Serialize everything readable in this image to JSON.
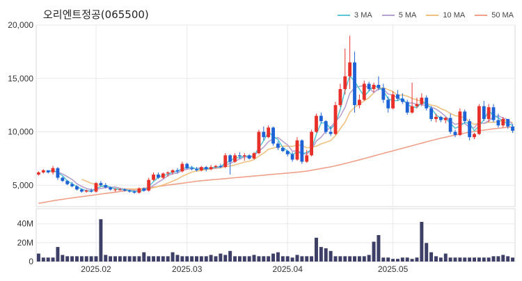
{
  "chart_data": {
    "type": "candlestick",
    "title": "오리엔트정공(065500)",
    "price_axis": {
      "ticks": [
        5000,
        10000,
        15000,
        20000
      ],
      "tick_labels": [
        "5,000",
        "10,000",
        "15,000",
        "20,000"
      ],
      "range": [
        3000,
        20000
      ]
    },
    "volume_axis": {
      "ticks": [
        0,
        20000000,
        40000000
      ],
      "tick_labels": [
        "0",
        "20M",
        "40M"
      ],
      "range": [
        0,
        56000000
      ]
    },
    "x_ticks": [
      {
        "index": 12,
        "label": "2025.02"
      },
      {
        "index": 31,
        "label": "2025.03"
      },
      {
        "index": 52,
        "label": "2025.04"
      },
      {
        "index": 74,
        "label": "2025.05"
      }
    ],
    "legend": [
      {
        "name": "3 MA",
        "color": "#5bc6d4"
      },
      {
        "name": "5 MA",
        "color": "#b8a0d0"
      },
      {
        "name": "10 MA",
        "color": "#f0c080"
      },
      {
        "name": "50 MA",
        "color": "#f0a088"
      }
    ],
    "colors": {
      "up": "#e8302a",
      "down": "#1e63d6",
      "volume": "#3d3f66",
      "grid": "#e8e8e8"
    },
    "candles": [
      [
        6000,
        6300,
        5900,
        6200
      ],
      [
        6200,
        6500,
        6100,
        6400
      ],
      [
        6400,
        6400,
        6100,
        6200
      ],
      [
        6200,
        6800,
        6000,
        6600
      ],
      [
        6600,
        6700,
        5500,
        5700
      ],
      [
        5700,
        5800,
        5300,
        5400
      ],
      [
        5400,
        5500,
        5000,
        5100
      ],
      [
        5100,
        5300,
        4800,
        4900
      ],
      [
        4900,
        5000,
        4500,
        4600
      ],
      [
        4600,
        4700,
        4300,
        4400
      ],
      [
        4400,
        4600,
        4300,
        4500
      ],
      [
        4500,
        4700,
        4300,
        4400
      ],
      [
        4400,
        5300,
        4300,
        5200
      ],
      [
        5200,
        5400,
        4900,
        5000
      ],
      [
        5000,
        5200,
        4700,
        4800
      ],
      [
        4800,
        4900,
        4500,
        4600
      ],
      [
        4600,
        4700,
        4400,
        4600
      ],
      [
        4600,
        4700,
        4500,
        4600
      ],
      [
        4600,
        4700,
        4400,
        4500
      ],
      [
        4500,
        4600,
        4300,
        4400
      ],
      [
        4400,
        4500,
        4200,
        4300
      ],
      [
        4300,
        4800,
        4200,
        4700
      ],
      [
        4700,
        4800,
        4400,
        4500
      ],
      [
        4500,
        5700,
        4400,
        5500
      ],
      [
        5500,
        6200,
        5400,
        6000
      ],
      [
        6000,
        6200,
        5600,
        5700
      ],
      [
        5700,
        6200,
        5600,
        6100
      ],
      [
        6100,
        6300,
        5800,
        6200
      ],
      [
        6200,
        6500,
        6000,
        6400
      ],
      [
        6400,
        6600,
        6100,
        6300
      ],
      [
        6300,
        7200,
        6200,
        7000
      ],
      [
        7000,
        7100,
        6500,
        6600
      ],
      [
        6600,
        6800,
        6400,
        6500
      ],
      [
        6500,
        6700,
        6300,
        6400
      ],
      [
        6400,
        6800,
        6300,
        6700
      ],
      [
        6700,
        6800,
        6300,
        6500
      ],
      [
        6500,
        6900,
        6400,
        6700
      ],
      [
        6700,
        6900,
        6600,
        6800
      ],
      [
        6800,
        7000,
        6600,
        6700
      ],
      [
        6700,
        8000,
        6600,
        7800
      ],
      [
        7800,
        7900,
        6000,
        7200
      ],
      [
        7200,
        8000,
        7100,
        7800
      ],
      [
        7800,
        8100,
        7500,
        7700
      ],
      [
        7700,
        8000,
        7300,
        7800
      ],
      [
        7800,
        7900,
        7400,
        7500
      ],
      [
        7500,
        8100,
        7400,
        8000
      ],
      [
        8000,
        10200,
        7900,
        10000
      ],
      [
        10000,
        10500,
        9200,
        9500
      ],
      [
        9500,
        10600,
        9400,
        10400
      ],
      [
        10400,
        10500,
        8700,
        8900
      ],
      [
        8900,
        9100,
        8300,
        8500
      ],
      [
        8500,
        8600,
        8100,
        8200
      ],
      [
        8200,
        8300,
        7700,
        7900
      ],
      [
        7900,
        8100,
        7200,
        7400
      ],
      [
        7400,
        9500,
        7300,
        9200
      ],
      [
        9200,
        9300,
        7000,
        7200
      ],
      [
        7200,
        8300,
        7100,
        7800
      ],
      [
        7800,
        10200,
        7700,
        10000
      ],
      [
        10000,
        11700,
        9900,
        11500
      ],
      [
        11500,
        11800,
        10800,
        11000
      ],
      [
        11000,
        11100,
        9800,
        10000
      ],
      [
        10000,
        10500,
        9600,
        9800
      ],
      [
        9800,
        12800,
        9700,
        12500
      ],
      [
        12500,
        14500,
        12300,
        14000
      ],
      [
        14000,
        17800,
        13500,
        15200
      ],
      [
        15200,
        19000,
        14000,
        16500
      ],
      [
        16500,
        17500,
        11800,
        12500
      ],
      [
        12500,
        13500,
        12200,
        13000
      ],
      [
        13000,
        14800,
        12900,
        14500
      ],
      [
        14500,
        14700,
        13800,
        14000
      ],
      [
        14000,
        14600,
        13700,
        14400
      ],
      [
        14400,
        15200,
        13900,
        14100
      ],
      [
        14100,
        14500,
        12700,
        13000
      ],
      [
        13000,
        13300,
        11800,
        12200
      ],
      [
        12200,
        13800,
        12100,
        13500
      ],
      [
        13500,
        13900,
        12900,
        13100
      ],
      [
        13100,
        13600,
        12600,
        12800
      ],
      [
        12800,
        13000,
        11600,
        11800
      ],
      [
        11800,
        14600,
        11700,
        12400
      ],
      [
        12400,
        13200,
        12200,
        12600
      ],
      [
        12600,
        13600,
        12400,
        13200
      ],
      [
        13200,
        13400,
        12000,
        12200
      ],
      [
        12200,
        12400,
        11000,
        11200
      ],
      [
        11200,
        11700,
        10900,
        11400
      ],
      [
        11400,
        11500,
        10900,
        11100
      ],
      [
        11100,
        11400,
        10800,
        11300
      ],
      [
        11300,
        11700,
        9800,
        10000
      ],
      [
        10000,
        10200,
        9500,
        9700
      ],
      [
        9700,
        12200,
        9600,
        11900
      ],
      [
        11900,
        12100,
        10800,
        11000
      ],
      [
        11000,
        11200,
        9200,
        9500
      ],
      [
        9500,
        9900,
        9300,
        9800
      ],
      [
        9800,
        12600,
        9700,
        12400
      ],
      [
        12400,
        12900,
        11000,
        11200
      ],
      [
        11200,
        12600,
        10900,
        12300
      ],
      [
        12300,
        12600,
        10900,
        11100
      ],
      [
        11100,
        11700,
        10400,
        10600
      ],
      [
        10600,
        11400,
        10400,
        11200
      ],
      [
        11200,
        11200,
        10300,
        10500
      ],
      [
        10500,
        10700,
        9900,
        10100
      ]
    ],
    "ma50": [
      3300,
      3380,
      3460,
      3540,
      3610,
      3680,
      3750,
      3810,
      3870,
      3930,
      3990,
      4050,
      4110,
      4170,
      4230,
      4290,
      4350,
      4410,
      4470,
      4530,
      4590,
      4650,
      4710,
      4770,
      4830,
      4890,
      4950,
      5010,
      5070,
      5130,
      5190,
      5250,
      5310,
      5370,
      5420,
      5460,
      5500,
      5540,
      5580,
      5620,
      5660,
      5700,
      5740,
      5780,
      5820,
      5860,
      5900,
      5940,
      5980,
      6020,
      6060,
      6100,
      6140,
      6180,
      6220,
      6270,
      6320,
      6400,
      6480,
      6560,
      6640,
      6720,
      6820,
      6920,
      7030,
      7140,
      7260,
      7380,
      7500,
      7620,
      7740,
      7860,
      7980,
      8100,
      8220,
      8340,
      8460,
      8580,
      8700,
      8820,
      8940,
      9060,
      9180,
      9290,
      9400,
      9500,
      9600,
      9700,
      9790,
      9880,
      9960,
      10030,
      10100,
      10160,
      10220,
      10280,
      10330,
      10380,
      10420,
      10460
    ],
    "volumes": [
      6,
      3,
      3,
      3,
      11,
      5,
      4,
      4,
      4,
      4,
      4,
      4,
      4,
      32,
      5,
      4,
      4,
      4,
      4,
      4,
      4,
      4,
      7,
      4,
      4,
      4,
      4,
      4,
      7,
      5,
      4,
      4,
      4,
      4,
      4,
      4,
      5,
      4,
      6,
      5,
      8,
      4,
      4,
      4,
      4,
      5,
      4,
      4,
      4,
      6,
      7,
      4,
      4,
      3,
      5,
      4,
      4,
      4,
      18,
      11,
      10,
      8,
      4,
      4,
      4,
      4,
      4,
      4,
      4,
      5,
      15,
      20,
      3,
      3,
      2,
      2,
      3,
      3,
      2,
      3,
      30,
      14,
      7,
      4,
      3,
      6,
      3,
      3,
      3,
      3,
      3,
      3,
      3,
      3,
      3,
      4,
      4,
      5,
      4,
      3
    ]
  }
}
